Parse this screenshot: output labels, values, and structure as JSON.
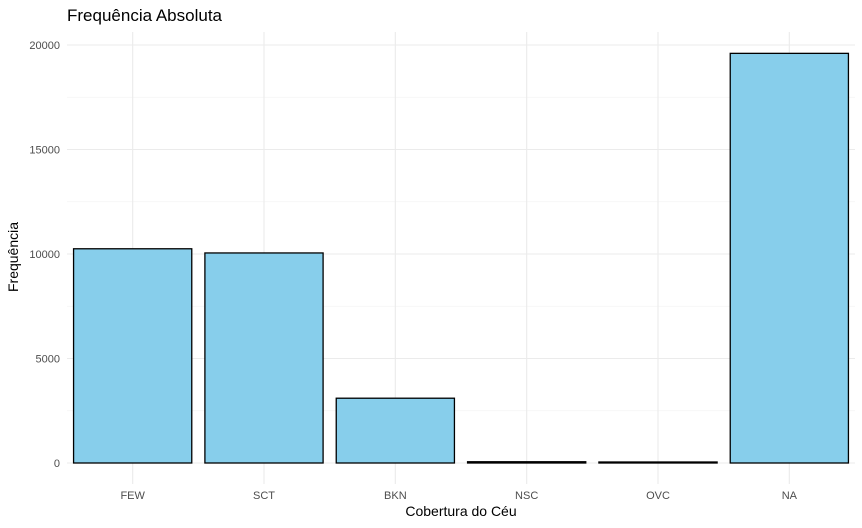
{
  "chart_data": {
    "type": "bar",
    "title": "Frequência Absoluta",
    "xlabel": "Cobertura do Céu",
    "ylabel": "Frequência",
    "categories": [
      "FEW",
      "SCT",
      "BKN",
      "NSC",
      "OVC",
      "NA"
    ],
    "values": [
      10250,
      10050,
      3100,
      60,
      15,
      19600
    ],
    "ylim": [
      -1000,
      21000
    ],
    "yticks": [
      0,
      5000,
      10000,
      15000,
      20000
    ],
    "ytick_labels": [
      "0",
      "5000",
      "10000",
      "15000",
      "20000"
    ],
    "grid": true,
    "legend": "none",
    "bar_color": "#87CEEB",
    "bar_outline": "#000000"
  }
}
